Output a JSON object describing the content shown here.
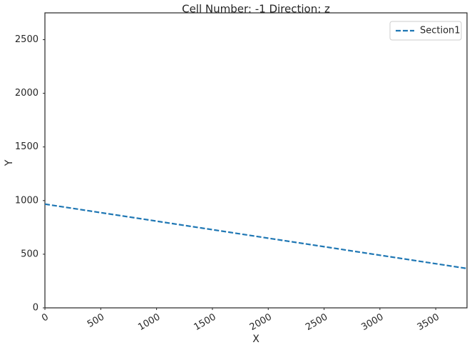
{
  "chart_data": {
    "type": "line",
    "title": "Cell Number: -1 Direction: z",
    "x_label": "X",
    "y_label": "Y",
    "x": [
      0,
      3780
    ],
    "series": [
      {
        "name": "Section1",
        "color": "#1f77b4",
        "values": [
          967,
          367
        ]
      }
    ],
    "xlim": [
      0,
      3780
    ],
    "ylim": [
      0,
      2750
    ],
    "xticks": [
      0,
      500,
      1000,
      1500,
      2000,
      2500,
      3000,
      3500
    ],
    "yticks": [
      0,
      500,
      1000,
      1500,
      2000,
      2500
    ],
    "legend": "upper right",
    "grid": false
  }
}
